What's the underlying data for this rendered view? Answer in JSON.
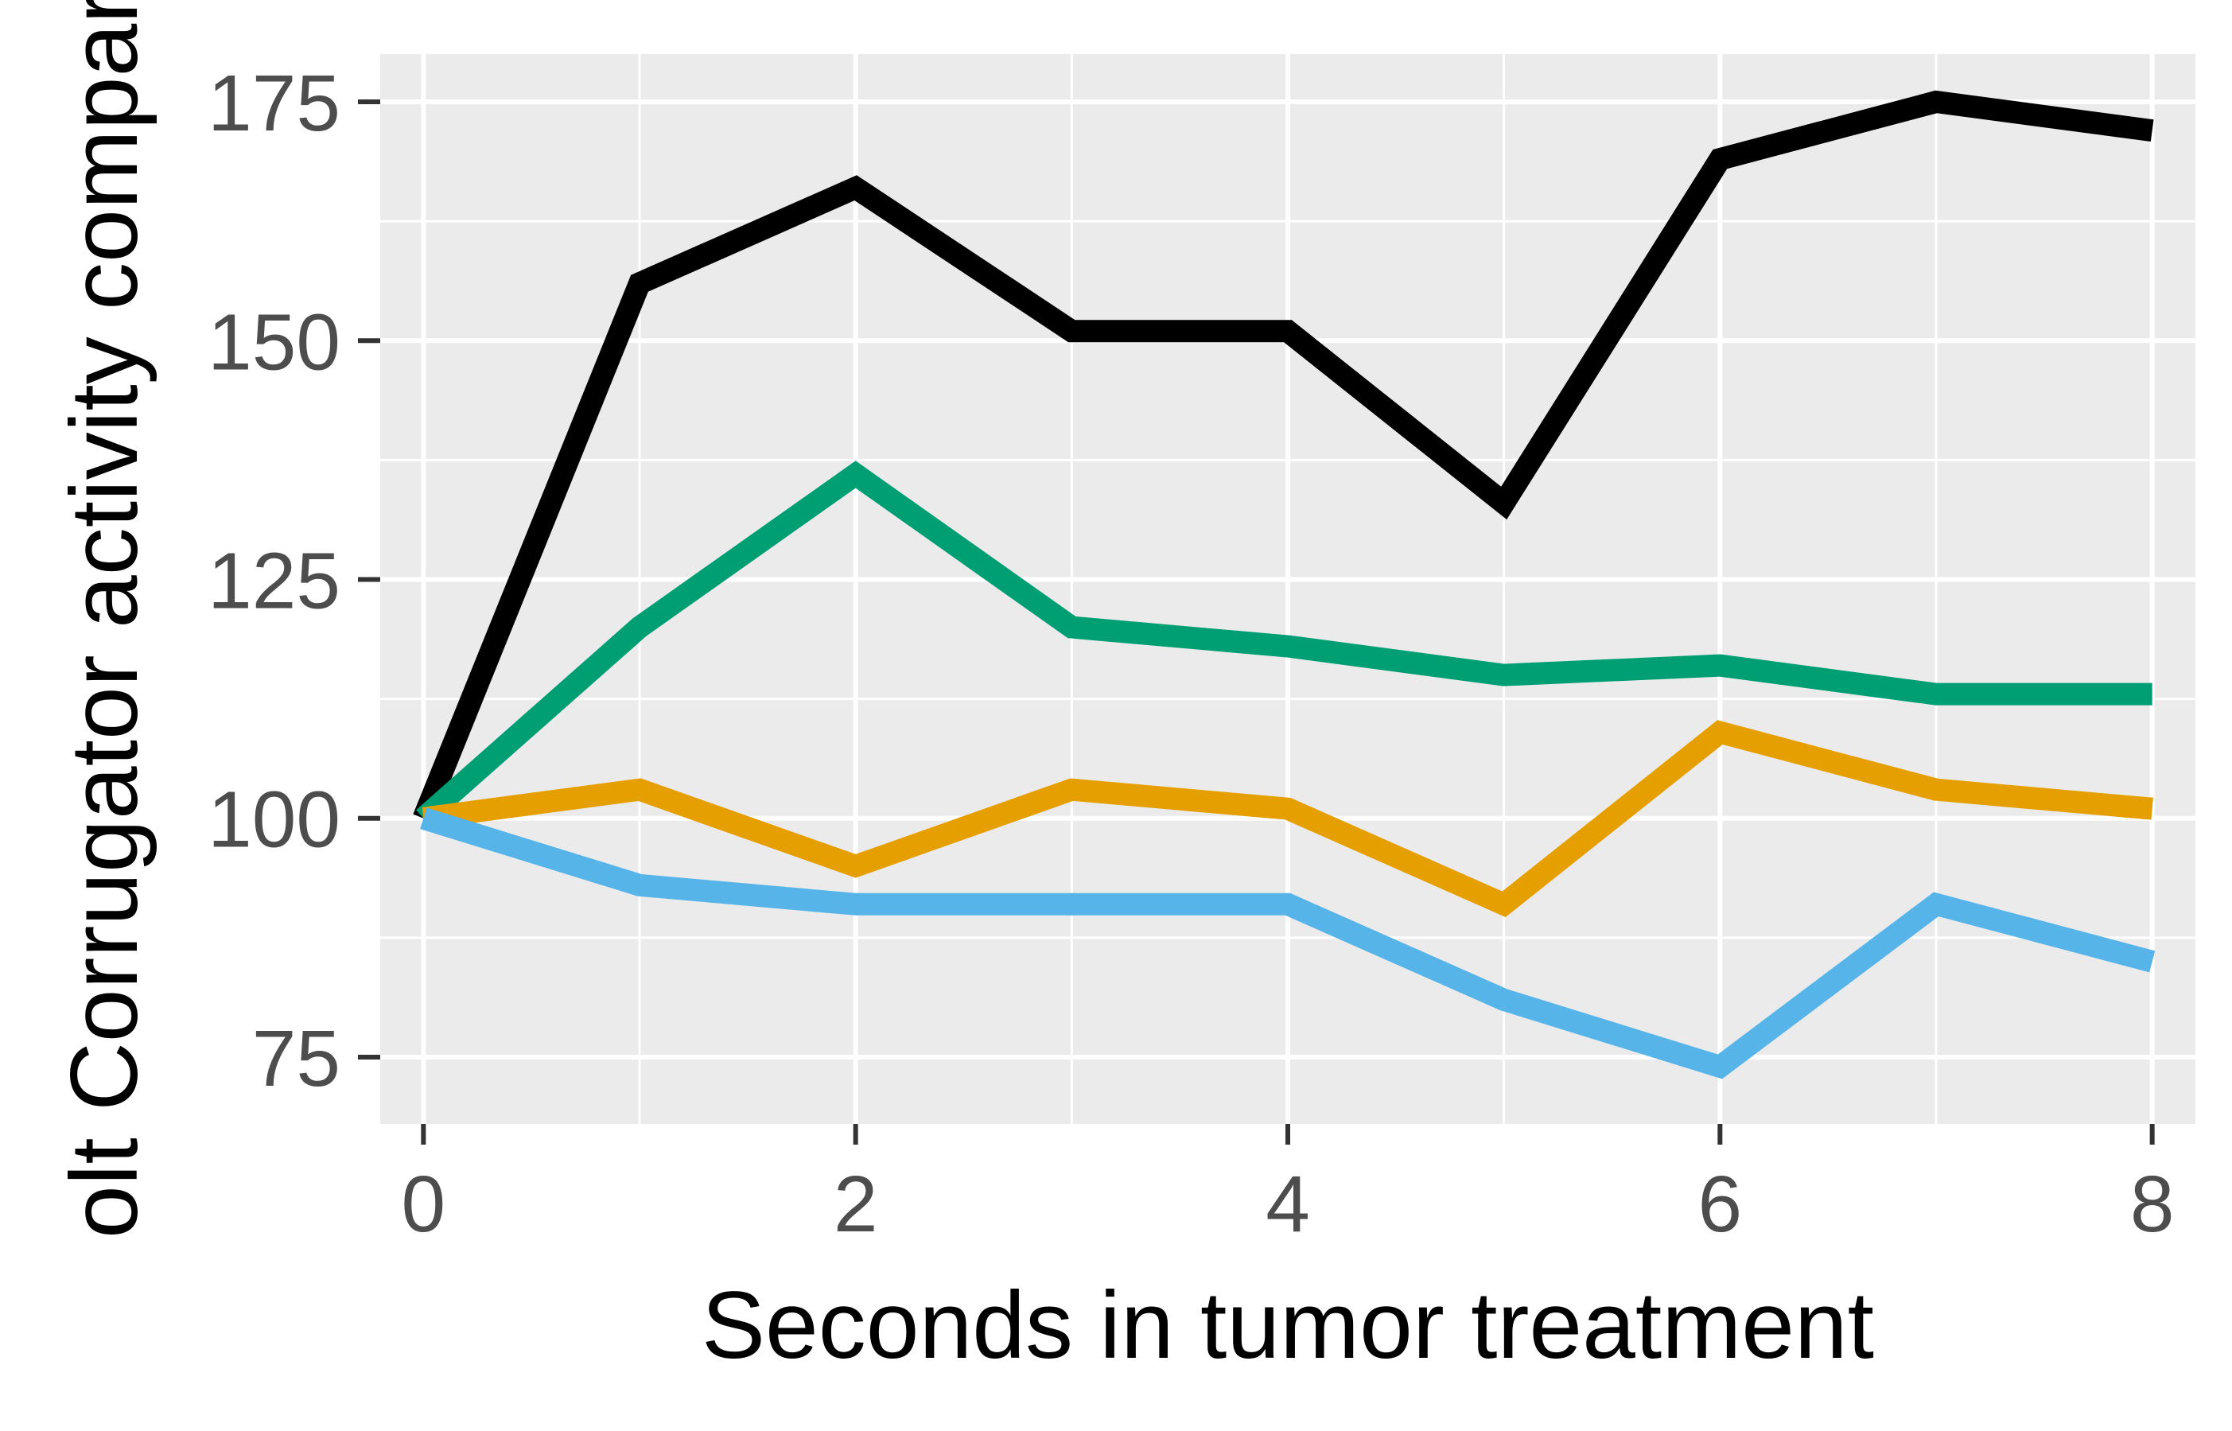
{
  "chart_data": {
    "type": "line",
    "xlabel": "Seconds in tumor treatment",
    "ylabel": "olt Corrugator activity compare",
    "x": [
      0,
      1,
      2,
      3,
      4,
      5,
      6,
      7,
      8
    ],
    "xlim": [
      -0.2,
      8.2
    ],
    "ylim": [
      68,
      180
    ],
    "x_ticks": [
      0,
      2,
      4,
      6,
      8
    ],
    "y_ticks": [
      75,
      100,
      125,
      150,
      175
    ],
    "grid": true,
    "legend": "none",
    "series": [
      {
        "color": "#000000",
        "values": [
          100,
          156,
          166,
          151,
          151,
          133,
          169,
          175,
          172
        ]
      },
      {
        "color": "#009E73",
        "values": [
          100,
          120,
          136,
          120,
          118,
          115,
          116,
          113,
          113
        ]
      },
      {
        "color": "#E69F00",
        "values": [
          100,
          103,
          95,
          103,
          101,
          91,
          109,
          103,
          101
        ]
      },
      {
        "color": "#56B4E9",
        "values": [
          100,
          93,
          91,
          91,
          91,
          81,
          74,
          91,
          85
        ]
      }
    ]
  }
}
